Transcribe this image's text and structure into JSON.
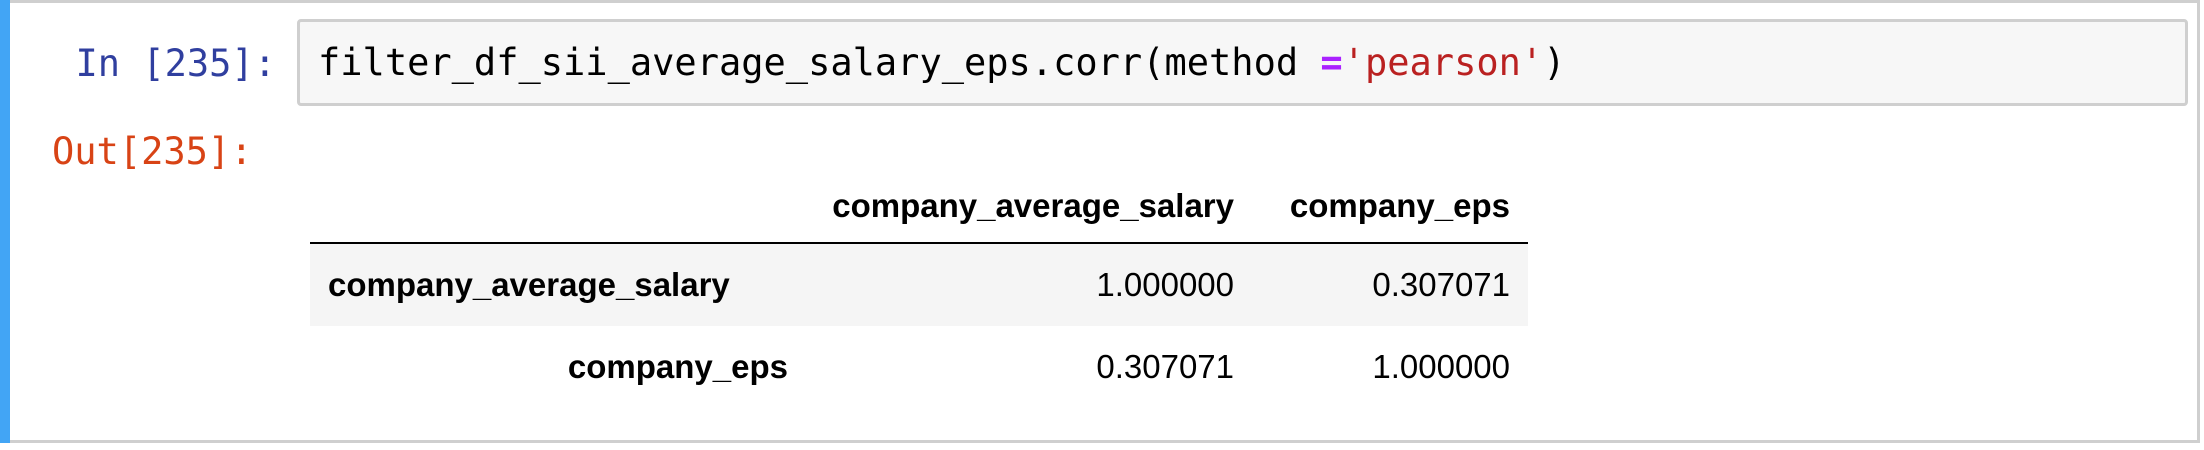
{
  "cell": {
    "in_prompt": "In [235]:",
    "out_prompt": "Out[235]:",
    "code": {
      "prefix": "filter_df_sii_average_salary_eps.corr(method ",
      "operator": "=",
      "string": "'pearson'",
      "suffix": ")"
    }
  },
  "colors": {
    "selected_bar": "#42a5f5",
    "in_prompt": "#303f9f",
    "out_prompt": "#d84315",
    "string": "#ba2121",
    "operator": "#aa22ff"
  },
  "table": {
    "columns": [
      "company_average_salary",
      "company_eps"
    ],
    "rows": [
      {
        "label": "company_average_salary",
        "values": [
          "1.000000",
          "0.307071"
        ]
      },
      {
        "label": "company_eps",
        "values": [
          "0.307071",
          "1.000000"
        ]
      }
    ]
  }
}
